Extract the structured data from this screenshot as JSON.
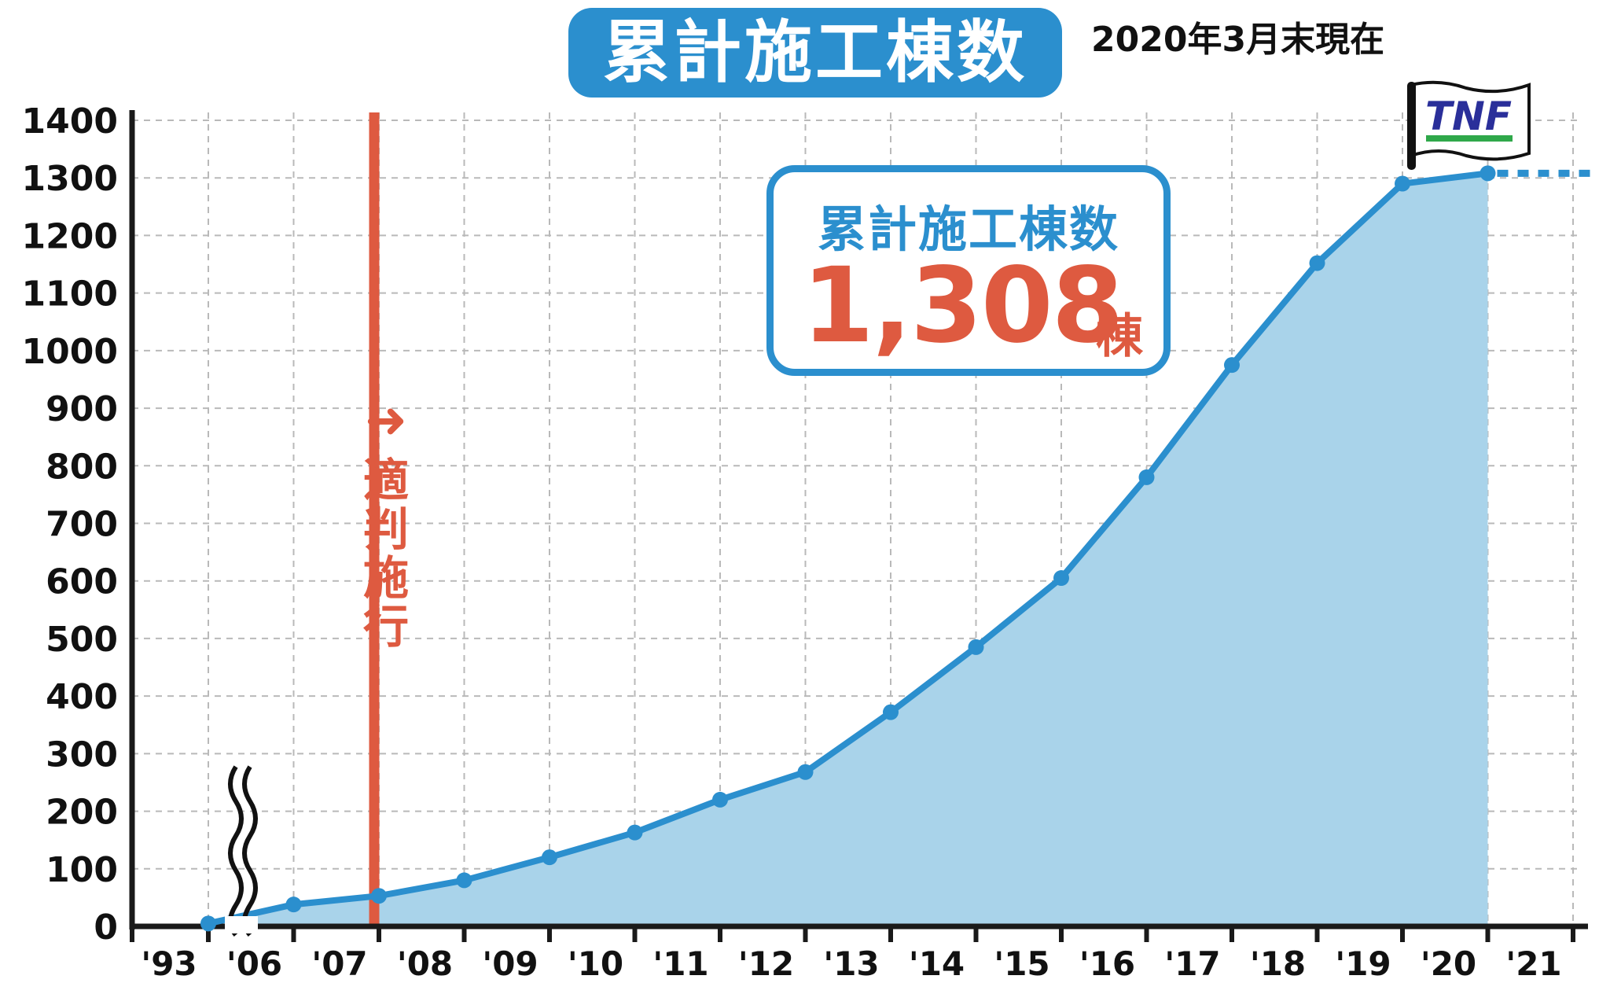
{
  "header": {
    "title": "累計施工棟数",
    "as_of": "2020年3月末現在"
  },
  "callout": {
    "label": "累計施工棟数",
    "value": "1,308",
    "unit": "棟"
  },
  "annotation": {
    "law_label": "適判施行",
    "law_arrow": "➜",
    "law_year": "'07",
    "logo_text": "TNF"
  },
  "colors": {
    "series": "#2b8fce",
    "area": "#a9d3ea",
    "law_line": "#de5a40",
    "grid": "#b9b9b9",
    "axis": "#1a1a1a",
    "logo_text": "#2a2f9a",
    "logo_bar": "#2fa84a"
  },
  "chart_data": {
    "type": "area",
    "title": "累計施工棟数",
    "xlabel": "",
    "ylabel": "",
    "x_tick_labels": [
      "'93",
      "'06",
      "'07",
      "'08",
      "'09",
      "'10",
      "'11",
      "'12",
      "'13",
      "'14",
      "'15",
      "'16",
      "'17",
      "'18",
      "'19",
      "'20",
      "'21"
    ],
    "y_ticks": [
      0,
      100,
      200,
      300,
      400,
      500,
      600,
      700,
      800,
      900,
      1000,
      1100,
      1200,
      1300,
      1400
    ],
    "ylim": [
      0,
      1400
    ],
    "axis_break_between": [
      "'93",
      "'06"
    ],
    "grid": true,
    "series": [
      {
        "x": [
          "'93",
          "'06",
          "'07",
          "'08",
          "'09",
          "'10",
          "'11",
          "'12",
          "'13",
          "'14",
          "'15",
          "'16",
          "'17",
          "'18",
          "'19",
          "'20"
        ],
        "values": [
          5,
          38,
          53,
          80,
          120,
          163,
          220,
          268,
          372,
          485,
          605,
          780,
          975,
          1152,
          1290,
          1308
        ]
      }
    ],
    "projection_after_last": 1308,
    "reference_line": {
      "x": "'07",
      "label": "適判施行"
    },
    "highlight_value": 1308
  }
}
